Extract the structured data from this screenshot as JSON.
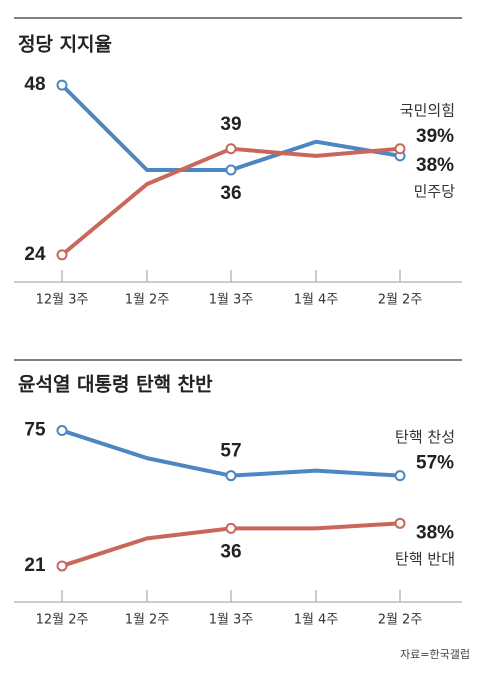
{
  "chart_data": [
    {
      "type": "line",
      "title": "정당 지지율",
      "categories": [
        "12월 3주",
        "1월 2주",
        "1월 3주",
        "1월 4주",
        "2월 2주"
      ],
      "ylim": [
        22,
        50
      ],
      "series": [
        {
          "name": "민주당",
          "color": "#4d87c1",
          "values": [
            48,
            36,
            36,
            40,
            38
          ],
          "value_labels": [
            "48",
            null,
            "36",
            null,
            "38%"
          ]
        },
        {
          "name": "국민의힘",
          "color": "#c9675b",
          "values": [
            24,
            34,
            39,
            38,
            39
          ],
          "value_labels": [
            "24",
            null,
            "39",
            null,
            "39%"
          ]
        }
      ]
    },
    {
      "type": "line",
      "title": "윤석열 대통령 탄핵 찬반",
      "categories": [
        "12월 2주",
        "1월 2주",
        "1월 3주",
        "1월 4주",
        "2월 2주"
      ],
      "ylim": [
        15,
        80
      ],
      "series": [
        {
          "name": "탄핵 찬성",
          "color": "#4d87c1",
          "values": [
            75,
            64,
            57,
            59,
            57
          ],
          "value_labels": [
            "75",
            null,
            "57",
            null,
            "57%"
          ]
        },
        {
          "name": "탄핵 반대",
          "color": "#c9675b",
          "values": [
            21,
            32,
            36,
            36,
            38
          ],
          "value_labels": [
            "21",
            null,
            "36",
            null,
            "38%"
          ]
        }
      ]
    }
  ],
  "source": "자료=한국갤럽"
}
